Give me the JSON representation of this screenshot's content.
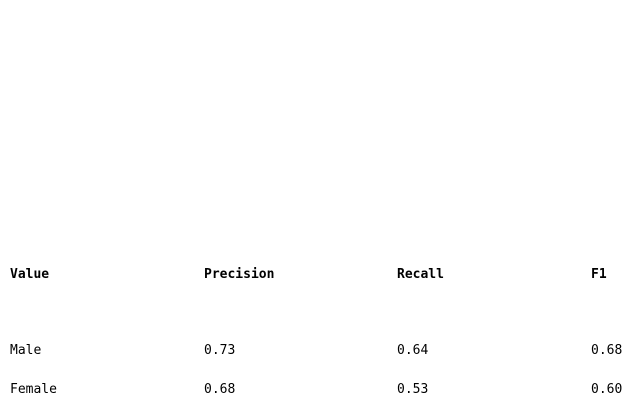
{
  "table": {
    "headers": [
      "Value",
      "Precision",
      "Recall",
      "F1"
    ],
    "rows": [
      [
        "Male",
        "0.73",
        "0.64",
        "0.68"
      ],
      [
        "Female",
        "0.68",
        "0.53",
        "0.60"
      ]
    ]
  }
}
